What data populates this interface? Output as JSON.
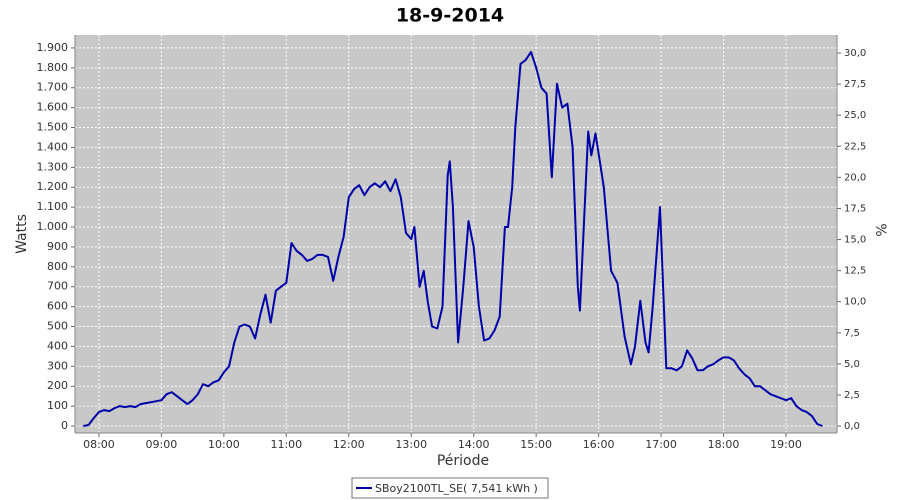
{
  "chart_data": {
    "type": "line",
    "title": "18-9-2014",
    "xlabel": "Période",
    "ylabel": "Watts",
    "y2label": "%",
    "x": [
      "07:45",
      "07:50",
      "07:55",
      "08:00",
      "08:05",
      "08:10",
      "08:15",
      "08:20",
      "08:25",
      "08:30",
      "08:35",
      "08:40",
      "08:45",
      "08:50",
      "09:00",
      "09:05",
      "09:10",
      "09:15",
      "09:20",
      "09:25",
      "09:30",
      "09:35",
      "09:40",
      "09:45",
      "09:50",
      "09:55",
      "10:00",
      "10:05",
      "10:10",
      "10:15",
      "10:20",
      "10:25",
      "10:30",
      "10:35",
      "10:40",
      "10:45",
      "10:50",
      "10:55",
      "11:00",
      "11:05",
      "11:10",
      "11:15",
      "11:20",
      "11:25",
      "11:30",
      "11:35",
      "11:40",
      "11:45",
      "11:50",
      "11:55",
      "12:00",
      "12:05",
      "12:10",
      "12:15",
      "12:20",
      "12:25",
      "12:30",
      "12:35",
      "12:40",
      "12:45",
      "12:50",
      "12:55",
      "13:00",
      "13:03",
      "13:08",
      "13:12",
      "13:16",
      "13:20",
      "13:25",
      "13:30",
      "13:35",
      "13:37",
      "13:40",
      "13:45",
      "13:50",
      "13:55",
      "14:00",
      "14:05",
      "14:10",
      "14:15",
      "14:20",
      "14:25",
      "14:30",
      "14:33",
      "14:37",
      "14:40",
      "14:45",
      "14:50",
      "14:55",
      "15:00",
      "15:05",
      "15:10",
      "15:15",
      "15:20",
      "15:25",
      "15:30",
      "15:35",
      "15:40",
      "15:42",
      "15:50",
      "15:53",
      "15:57",
      "16:05",
      "16:12",
      "16:18",
      "16:25",
      "16:31",
      "16:35",
      "16:40",
      "16:45",
      "16:48",
      "16:52",
      "16:59",
      "17:05",
      "17:10",
      "17:15",
      "17:20",
      "17:25",
      "17:30",
      "17:35",
      "17:40",
      "17:45",
      "17:50",
      "17:55",
      "18:00",
      "18:05",
      "18:10",
      "18:15",
      "18:20",
      "18:25",
      "18:30",
      "18:35",
      "18:40",
      "18:45",
      "18:50",
      "18:55",
      "19:00",
      "19:05",
      "19:10",
      "19:15",
      "19:20",
      "19:25",
      "19:30",
      "19:35"
    ],
    "series": [
      {
        "name": "SBoy2100TL_SE( 7,541 kWh )",
        "color": "#0000aa",
        "values": [
          0,
          5,
          40,
          70,
          80,
          75,
          90,
          100,
          95,
          100,
          95,
          110,
          115,
          120,
          130,
          160,
          170,
          150,
          130,
          110,
          130,
          160,
          210,
          200,
          220,
          230,
          270,
          300,
          420,
          500,
          510,
          500,
          440,
          560,
          660,
          520,
          680,
          700,
          720,
          920,
          880,
          860,
          830,
          840,
          860,
          860,
          850,
          730,
          850,
          950,
          1150,
          1190,
          1210,
          1160,
          1200,
          1220,
          1200,
          1230,
          1180,
          1240,
          1150,
          970,
          940,
          1000,
          700,
          780,
          620,
          500,
          490,
          600,
          1260,
          1330,
          1100,
          420,
          700,
          1030,
          900,
          600,
          430,
          440,
          480,
          550,
          1000,
          1000,
          1200,
          1500,
          1820,
          1840,
          1880,
          1800,
          1700,
          1670,
          1250,
          1720,
          1600,
          1620,
          1400,
          700,
          580,
          1480,
          1360,
          1470,
          1200,
          780,
          720,
          450,
          310,
          400,
          630,
          420,
          370,
          600,
          1100,
          290,
          290,
          280,
          300,
          380,
          340,
          280,
          280,
          300,
          310,
          330,
          345,
          345,
          330,
          290,
          260,
          240,
          200,
          200,
          180,
          160,
          150,
          140,
          130,
          140,
          100,
          80,
          70,
          50,
          10,
          0
        ]
      }
    ],
    "xlim": [
      "07:37",
      "19:49"
    ],
    "xticks": [
      "08:00",
      "09:00",
      "10:00",
      "11:00",
      "12:00",
      "13:00",
      "14:00",
      "15:00",
      "16:00",
      "17:00",
      "18:00",
      "19:00"
    ],
    "ylim": [
      -35,
      1965
    ],
    "yticks": [
      0,
      100,
      200,
      300,
      400,
      500,
      600,
      700,
      800,
      900,
      {
        "value": 1000,
        "label": "1.000"
      },
      {
        "value": 1100,
        "label": "1.100"
      },
      {
        "value": 1200,
        "label": "1.200"
      },
      {
        "value": 1300,
        "label": "1.300"
      },
      {
        "value": 1400,
        "label": "1.400"
      },
      {
        "value": 1500,
        "label": "1.500"
      },
      {
        "value": 1600,
        "label": "1.600"
      },
      {
        "value": 1700,
        "label": "1.700"
      },
      {
        "value": 1800,
        "label": "1.800"
      },
      {
        "value": 1900,
        "label": "1.900"
      }
    ],
    "y2lim": [
      -0.56,
      31.45
    ],
    "y2ticks": [
      {
        "value": 0,
        "label": "0,0"
      },
      {
        "value": 2.5,
        "label": "2,5"
      },
      {
        "value": 5,
        "label": "5,0"
      },
      {
        "value": 7.5,
        "label": "7,5"
      },
      {
        "value": 10,
        "label": "10,0"
      },
      {
        "value": 12.5,
        "label": "12,5"
      },
      {
        "value": 15,
        "label": "15,0"
      },
      {
        "value": 17.5,
        "label": "17,5"
      },
      {
        "value": 20,
        "label": "20,0"
      },
      {
        "value": 22.5,
        "label": "22,5"
      },
      {
        "value": 25,
        "label": "25,0"
      },
      {
        "value": 27.5,
        "label": "27,5"
      },
      {
        "value": 30,
        "label": "30,0"
      }
    ],
    "grid": true
  }
}
